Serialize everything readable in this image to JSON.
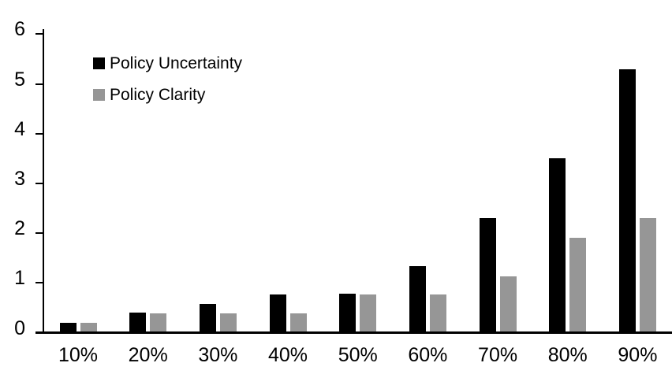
{
  "page": {
    "background_color": "#ffffff",
    "text_color": "#000000"
  },
  "chart_data": {
    "type": "bar",
    "title": "",
    "xlabel": "",
    "ylabel": "",
    "categories": [
      "10%",
      "20%",
      "30%",
      "40%",
      "50%",
      "60%",
      "70%",
      "80%",
      "90%"
    ],
    "series": [
      {
        "name": "Policy Uncertainty",
        "color": "#000000",
        "values": [
          0.2,
          0.4,
          0.57,
          0.77,
          0.78,
          1.33,
          2.3,
          3.5,
          5.3
        ]
      },
      {
        "name": "Policy Clarity",
        "color": "#969696",
        "values": [
          0.2,
          0.38,
          0.38,
          0.38,
          0.77,
          0.77,
          1.13,
          1.9,
          2.3
        ]
      }
    ],
    "ylim": [
      0,
      6
    ],
    "yticks": [
      0,
      1,
      2,
      3,
      4,
      5,
      6
    ],
    "grid": false,
    "legend_position": "top-left",
    "axis_color": "#000000"
  }
}
